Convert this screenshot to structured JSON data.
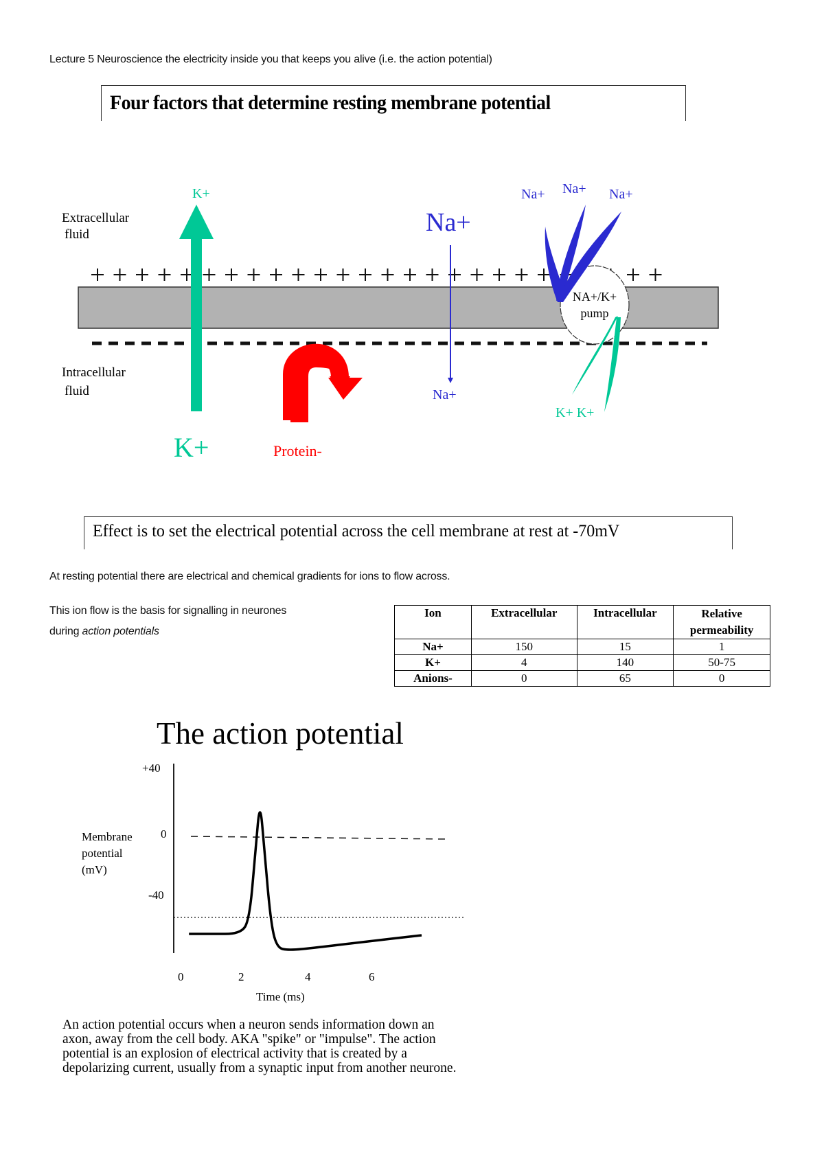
{
  "header": {
    "lecture_line": "Lecture 5 Neuroscience the electricity inside you that keeps you alive (i.e. the action potential)"
  },
  "membrane_figure": {
    "title": "Four factors that determine resting membrane potential",
    "labels": {
      "extracellular_line1": "Extracellular",
      "extracellular_line2": "fluid",
      "intracellular_line1": "Intracellular",
      "intracellular_line2": "fluid",
      "k_top": "K+",
      "k_bottom": "K+",
      "na_top": "Na+",
      "na_bottom": "Na+",
      "protein": "Protein-",
      "pump_line1": "NA+/K+",
      "pump_line2": "pump",
      "pump_na_1": "Na+",
      "pump_na_2": "Na+",
      "pump_na_3": "Na+",
      "pump_k": "K+ K+"
    },
    "colors": {
      "potassium": "#00c896",
      "sodium": "#2a2ad0",
      "protein": "#ff0000",
      "membrane": "#b2b2b2"
    },
    "charge_top": "+",
    "charge_bottom": "-"
  },
  "effect_box": {
    "text": "Effect is to set the electrical potential across the cell membrane at rest at -70mV"
  },
  "paragraphs": {
    "gradients": "At resting potential there are electrical and chemical gradients for ions to flow across.",
    "ion_flow_line1": "This ion flow is the basis for signalling in neurones",
    "ion_flow_line2_prefix": "during ",
    "ion_flow_line2_italic": "action potentials"
  },
  "ion_table": {
    "headers": [
      "Ion",
      "Extracellular",
      "Intracellular",
      "Relative permeability"
    ],
    "rows": [
      [
        "Na+",
        "150",
        "15",
        "1"
      ],
      [
        "K+",
        "4",
        "140",
        "50-75"
      ],
      [
        "Anions-",
        "0",
        "65",
        "0"
      ]
    ]
  },
  "chart_data": {
    "type": "line",
    "title": "The action potential",
    "xlabel": "Time (ms)",
    "ylabel": "Membrane potential (mV)",
    "x_ticks": [
      "0",
      "2",
      "4",
      "6"
    ],
    "y_ticks": [
      "+40",
      "0",
      "-40"
    ],
    "xlim": [
      0,
      8.5
    ],
    "ylim": [
      -110,
      40
    ],
    "grid": false,
    "series": [
      {
        "name": "Membrane potential",
        "x": [
          0.3,
          1.0,
          2.0,
          2.3,
          2.5,
          2.65,
          2.8,
          3.0,
          3.2,
          3.6,
          4.5,
          6.0,
          8.0
        ],
        "values": [
          -70,
          -70,
          -70,
          -60,
          -10,
          28,
          -10,
          -60,
          -80,
          -82,
          -80,
          -76,
          -71
        ]
      }
    ],
    "reference_lines": [
      {
        "name": "zero line",
        "y": 0,
        "style": "dashed"
      },
      {
        "name": "resting potential",
        "y": -70,
        "style": "dotted"
      }
    ]
  },
  "caption": {
    "lines": [
      "An action potential occurs when a neuron sends information down an",
      "axon, away from the cell body. AKA \"spike\" or \"impulse\". The action",
      "potential is an explosion of electrical activity that is created by a",
      "depolarizing current, usually from a synaptic input from another neurone."
    ]
  }
}
